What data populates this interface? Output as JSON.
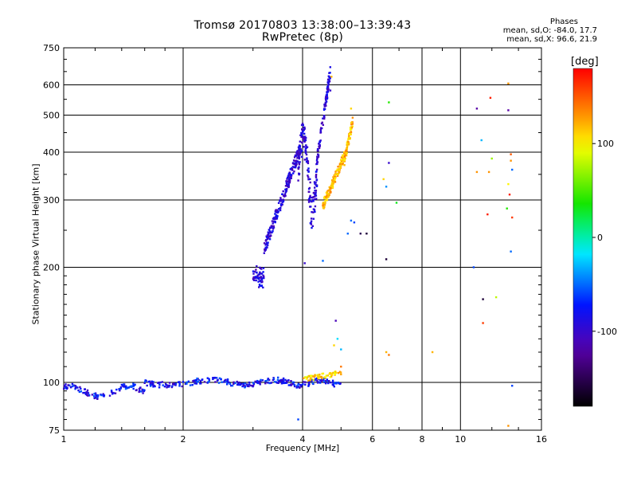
{
  "title_line1": "Tromsø 20170803 13:38:00–13:39:43",
  "title_line2": "RwPretec (8p)",
  "phases": {
    "heading": "Phases",
    "o_line": "mean, sd,O:  -84.0, 17.7",
    "x_line": "mean, sd,X:  96.6, 21.9"
  },
  "colorbar": {
    "unit": "[deg]",
    "range": [
      -180,
      180
    ],
    "ticks": [
      100,
      0,
      -100
    ]
  },
  "chart_data": {
    "type": "scatter",
    "xlabel": "Frequency [MHz]",
    "ylabel": "Stationary phase Virtual Height [km]",
    "xscale": "log",
    "yscale": "log",
    "xlim": [
      1,
      16
    ],
    "ylim": [
      75,
      750
    ],
    "xticks": [
      1,
      2,
      4,
      6,
      8,
      10,
      16
    ],
    "yticks": [
      75,
      100,
      200,
      300,
      400,
      500,
      600,
      750
    ],
    "grid": true,
    "point_series": [
      {
        "name": "E-layer O trace",
        "x_range": [
          1.0,
          5.0
        ],
        "y_base": [
          93,
          106
        ],
        "phase": -80
      },
      {
        "name": "E-layer X trace",
        "x_range": [
          4.0,
          5.0
        ],
        "y_base": [
          101,
          107
        ],
        "phase": 110
      },
      {
        "name": "F-layer O trace",
        "x_range": [
          3.0,
          4.7
        ],
        "y_base": [
          185,
          470
        ],
        "phase": -95
      },
      {
        "name": "F-layer X trace",
        "x_range": [
          4.5,
          5.35
        ],
        "y_base": [
          290,
          400
        ],
        "phase": 120
      }
    ],
    "scattered_points": [
      {
        "x": 4.73,
        "y": 630,
        "phase": 120
      },
      {
        "x": 4.7,
        "y": 580,
        "phase": -100
      },
      {
        "x": 5.3,
        "y": 520,
        "phase": 110
      },
      {
        "x": 6.6,
        "y": 540,
        "phase": 40
      },
      {
        "x": 6.4,
        "y": 340,
        "phase": 110
      },
      {
        "x": 6.5,
        "y": 325,
        "phase": -40
      },
      {
        "x": 6.9,
        "y": 295,
        "phase": 30
      },
      {
        "x": 6.6,
        "y": 375,
        "phase": -100
      },
      {
        "x": 5.3,
        "y": 265,
        "phase": -50
      },
      {
        "x": 5.4,
        "y": 262,
        "phase": -60
      },
      {
        "x": 5.2,
        "y": 245,
        "phase": -50
      },
      {
        "x": 5.6,
        "y": 245,
        "phase": -150
      },
      {
        "x": 5.8,
        "y": 245,
        "phase": -160
      },
      {
        "x": 4.5,
        "y": 208,
        "phase": -50
      },
      {
        "x": 4.05,
        "y": 205,
        "phase": -100
      },
      {
        "x": 6.5,
        "y": 210,
        "phase": -160
      },
      {
        "x": 6.5,
        "y": 120,
        "phase": 120
      },
      {
        "x": 8.5,
        "y": 120,
        "phase": 120
      },
      {
        "x": 6.6,
        "y": 118,
        "phase": 140
      },
      {
        "x": 4.9,
        "y": 130,
        "phase": -20
      },
      {
        "x": 4.85,
        "y": 145,
        "phase": -110
      },
      {
        "x": 4.8,
        "y": 125,
        "phase": 110
      },
      {
        "x": 5.0,
        "y": 122,
        "phase": -30
      },
      {
        "x": 5.0,
        "y": 110,
        "phase": 140
      },
      {
        "x": 3.9,
        "y": 80,
        "phase": -60
      },
      {
        "x": 11.0,
        "y": 520,
        "phase": -120
      },
      {
        "x": 11.3,
        "y": 430,
        "phase": -30
      },
      {
        "x": 11.0,
        "y": 355,
        "phase": 130
      },
      {
        "x": 11.8,
        "y": 355,
        "phase": 130
      },
      {
        "x": 11.9,
        "y": 555,
        "phase": 170
      },
      {
        "x": 11.7,
        "y": 275,
        "phase": 170
      },
      {
        "x": 12.0,
        "y": 385,
        "phase": 70
      },
      {
        "x": 13.2,
        "y": 605,
        "phase": 130
      },
      {
        "x": 13.2,
        "y": 515,
        "phase": -120
      },
      {
        "x": 13.4,
        "y": 395,
        "phase": 150
      },
      {
        "x": 13.4,
        "y": 380,
        "phase": 130
      },
      {
        "x": 13.5,
        "y": 360,
        "phase": -50
      },
      {
        "x": 13.2,
        "y": 330,
        "phase": 100
      },
      {
        "x": 13.3,
        "y": 310,
        "phase": 170
      },
      {
        "x": 13.1,
        "y": 285,
        "phase": 40
      },
      {
        "x": 13.5,
        "y": 270,
        "phase": 160
      },
      {
        "x": 13.4,
        "y": 220,
        "phase": -50
      },
      {
        "x": 10.8,
        "y": 200,
        "phase": -60
      },
      {
        "x": 11.4,
        "y": 165,
        "phase": -160
      },
      {
        "x": 12.3,
        "y": 167,
        "phase": 80
      },
      {
        "x": 11.4,
        "y": 143,
        "phase": 160
      },
      {
        "x": 13.5,
        "y": 98,
        "phase": -60
      },
      {
        "x": 13.2,
        "y": 77,
        "phase": 130
      }
    ]
  }
}
